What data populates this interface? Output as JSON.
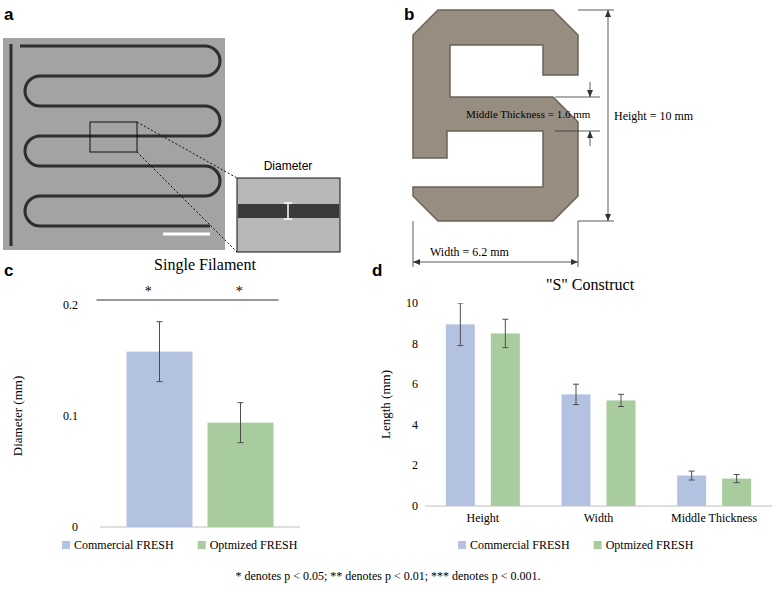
{
  "figure": {
    "panel_labels": [
      "a",
      "b",
      "c",
      "d"
    ],
    "footnote": "* denotes p < 0.05; ** denotes p < 0.01; *** denotes p < 0.001."
  },
  "panel_a": {
    "inset_label": "Diameter"
  },
  "panel_b": {
    "height_label": "Height = 10 mm",
    "width_label": "Width = 6.2 mm",
    "middle_label": "Middle Thickness = 1.6 mm"
  },
  "chart_data": [
    {
      "type": "bar",
      "title": "Single Filament",
      "y_label": "Diameter (mm)",
      "categories": [
        null
      ],
      "series": [
        {
          "name": "Commercial FRESH",
          "color": "#b4c2e2",
          "values": [
            0.158
          ],
          "errors": [
            0.027
          ]
        },
        {
          "name": "Optmized FRESH",
          "color": "#a9cc9f",
          "values": [
            0.094
          ],
          "errors": [
            0.018
          ]
        }
      ],
      "ylim": [
        0,
        0.2
      ],
      "yticks": [
        0,
        0.1,
        0.2
      ],
      "legend": "bottom",
      "annotations": [
        "*",
        "*"
      ]
    },
    {
      "type": "bar",
      "title": "\"S\" Construct",
      "y_label": "Length (mm)",
      "categories": [
        "Height",
        "Width",
        "Middle Thickness"
      ],
      "series": [
        {
          "name": "Commercial FRESH",
          "color": "#b4c2e2",
          "values": [
            8.95,
            5.5,
            1.5
          ],
          "errors": [
            1.05,
            0.5,
            0.22
          ]
        },
        {
          "name": "Optmized FRESH",
          "color": "#a9cc9f",
          "values": [
            8.5,
            5.2,
            1.35
          ],
          "errors": [
            0.7,
            0.3,
            0.2
          ]
        }
      ],
      "ylim": [
        0,
        10
      ],
      "yticks": [
        0,
        2,
        4,
        6,
        8,
        10
      ],
      "legend": "bottom"
    }
  ]
}
